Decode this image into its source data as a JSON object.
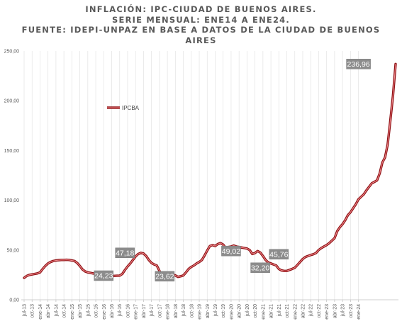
{
  "chart_data": {
    "type": "line",
    "title_lines": [
      "INFLACIÓN: IPC-CIUDAD DE BUENOS AIRES.",
      "SERIE MENSUAL: ENE14 A ENE24.",
      "FUENTE: IDEPI-UNPAZ EN BASE A DATOS DE LA CIUDAD DE BUENOS",
      "AIRES"
    ],
    "xlabel": "",
    "ylabel": "",
    "ylim": [
      0,
      250
    ],
    "y_ticks": [
      "0,00",
      "50,00",
      "100,00",
      "150,00",
      "200,00",
      "250,00"
    ],
    "x_tick_labels": [
      "jul-13",
      "oct-13",
      "ene-14",
      "abr-14",
      "jul-14",
      "oct-14",
      "ene-15",
      "abr-15",
      "jul-15",
      "oct-15",
      "ene-16",
      "abr-16",
      "jul-16",
      "oct-16",
      "ene-17",
      "abr-17",
      "jul-17",
      "oct-17",
      "ene-18",
      "abr-18",
      "jul-18",
      "oct-18",
      "ene-19",
      "abr-19",
      "jul-19",
      "oct-19",
      "ene-20",
      "abr-20",
      "jul-20",
      "oct-20",
      "ene-21",
      "abr-21",
      "jul-21",
      "oct-21",
      "ene-22",
      "abr-22",
      "jul-22",
      "oct-22",
      "ene-23",
      "abr-23",
      "jul-23",
      "oct-23",
      "ene-24"
    ],
    "grid": "vertical",
    "legend_position": "upper-left",
    "series": [
      {
        "name": "IPCBA",
        "color": "#c0272d",
        "start": "jul-13",
        "frequency": "monthly",
        "values": [
          22.0,
          24.0,
          25.0,
          25.5,
          26.0,
          26.5,
          27.5,
          31.0,
          34.0,
          36.5,
          38.0,
          39.0,
          39.5,
          39.8,
          40.0,
          40.0,
          40.2,
          40.0,
          39.5,
          39.0,
          37.0,
          34.0,
          30.5,
          28.5,
          27.5,
          27.0,
          26.5,
          26.0,
          25.5,
          25.0,
          24.5,
          24.3,
          24.1,
          23.8,
          24.0,
          24.2,
          24.23,
          26.0,
          30.0,
          33.5,
          36.5,
          40.0,
          43.5,
          46.0,
          47.18,
          46.5,
          44.0,
          40.0,
          37.0,
          35.5,
          34.5,
          29.0,
          25.0,
          22.5,
          22.0,
          24.5,
          25.5,
          24.5,
          23.0,
          23.62,
          24.5,
          27.5,
          31.0,
          33.0,
          34.5,
          36.5,
          38.0,
          40.0,
          44.5,
          49.5,
          54.0,
          55.0,
          54.0,
          56.0,
          57.0,
          55.5,
          52.0,
          53.0,
          53.5,
          54.5,
          53.5,
          53.0,
          52.5,
          52.0,
          51.5,
          50.0,
          46.0,
          47.0,
          49.02,
          47.5,
          44.0,
          40.0,
          37.5,
          36.5,
          35.5,
          34.5,
          31.0,
          29.5,
          29.0,
          29.0,
          30.0,
          31.0,
          32.2,
          35.0,
          38.0,
          41.0,
          43.0,
          44.0,
          45.0,
          45.76,
          47.0,
          50.0,
          52.0,
          53.5,
          55.0,
          57.0,
          59.5,
          62.0,
          69.0,
          73.0,
          76.0,
          80.0,
          85.0,
          88.0,
          92.0,
          96.0,
          101.0,
          103.5,
          106.0,
          110.0,
          113.5,
          117.0,
          118.5,
          120.0,
          127.0,
          138.0,
          143.0,
          156.0,
          180.0,
          205.0,
          236.96
        ]
      }
    ],
    "data_labels": [
      {
        "x": "ene-16",
        "value": 24.23,
        "text": "24,23"
      },
      {
        "x": "sep-16",
        "value": 47.18,
        "text": "47,18"
      },
      {
        "x": "dic-17",
        "value": 23.62,
        "text": "23,62"
      },
      {
        "x": "ene-20",
        "value": 49.02,
        "text": "49,02"
      },
      {
        "x": "dic-20",
        "value": 32.2,
        "text": "32,20"
      },
      {
        "x": "jul-21",
        "value": 45.76,
        "text": "45,76"
      },
      {
        "x": "ene-24",
        "value": 236.96,
        "text": "236,96"
      }
    ]
  }
}
